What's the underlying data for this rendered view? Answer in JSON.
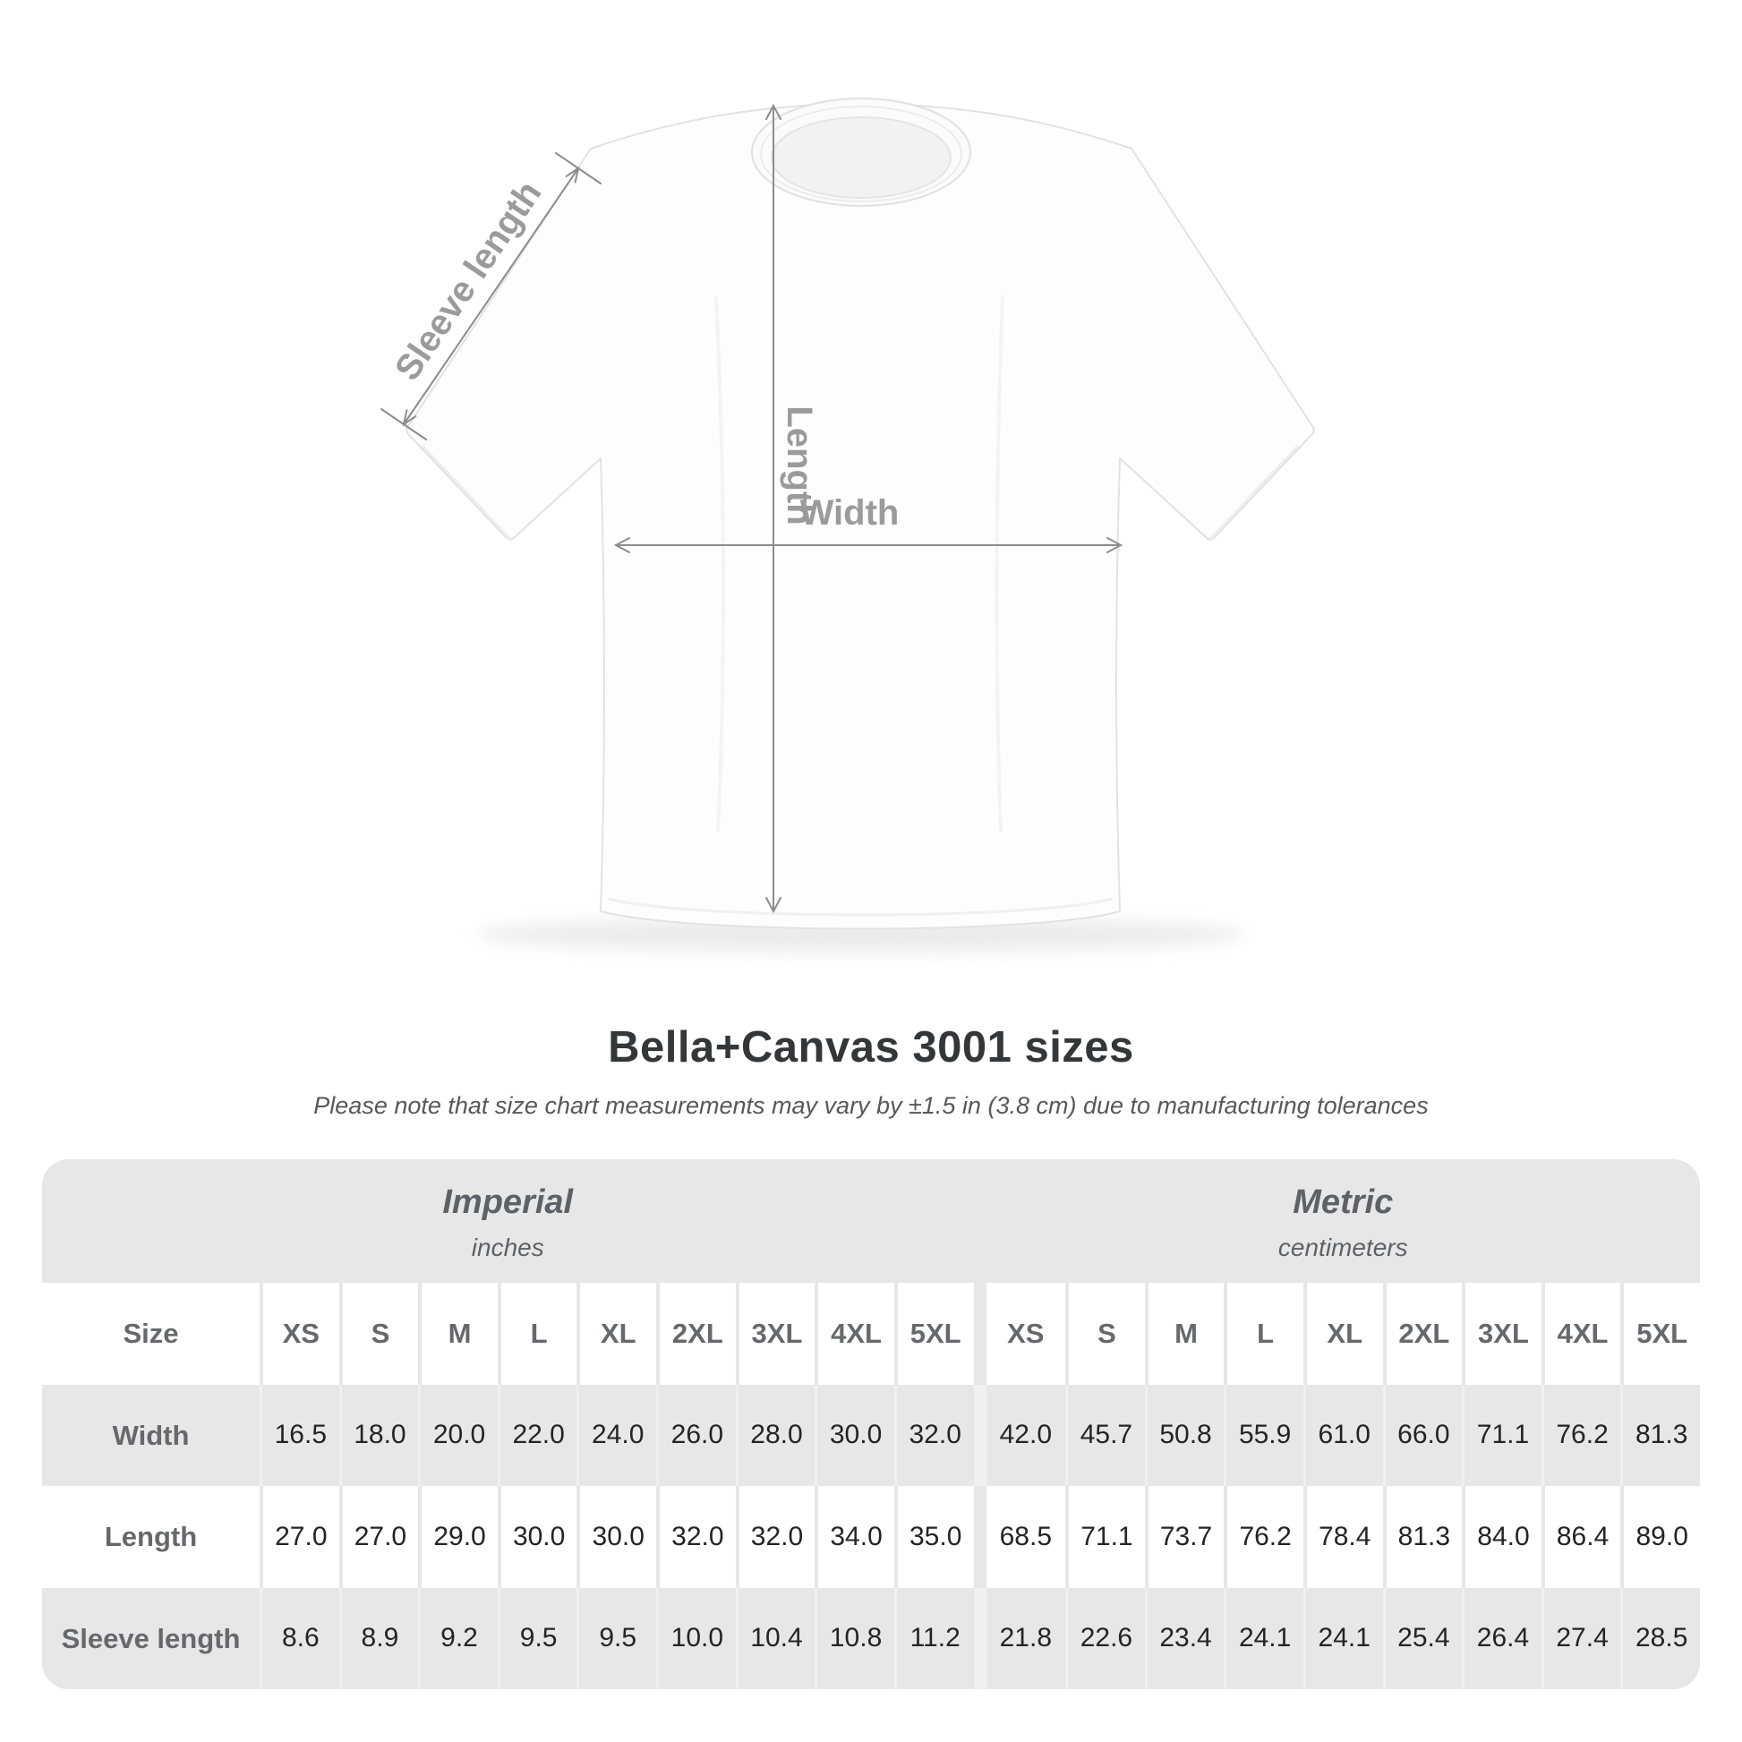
{
  "colors": {
    "table_background": "#e8e7e7",
    "row_white": "#ffffff",
    "annotation_line": "#8d8d8d",
    "annotation_label": "#9b9b9b",
    "header_text": "#65696d",
    "value_text": "#242424",
    "title_text": "#343739"
  },
  "diagram": {
    "sleeve_label": "Sleeve length",
    "length_label": "Length",
    "width_label": "Width"
  },
  "heading": {
    "title": "Bella+Canvas 3001 sizes",
    "subtitle": "Please note that size chart measurements may vary by ±1.5 in (3.8 cm) due to manufacturing tolerances"
  },
  "table": {
    "groups": [
      {
        "label": "Imperial",
        "unit": "inches"
      },
      {
        "label": "Metric",
        "unit": "centimeters"
      }
    ],
    "size_column_header": "Size",
    "sizes": [
      "XS",
      "S",
      "M",
      "L",
      "XL",
      "2XL",
      "3XL",
      "4XL",
      "5XL"
    ],
    "rows": [
      {
        "label": "Width",
        "imperial": [
          "16.5",
          "18.0",
          "20.0",
          "22.0",
          "24.0",
          "26.0",
          "28.0",
          "30.0",
          "32.0"
        ],
        "metric": [
          "42.0",
          "45.7",
          "50.8",
          "55.9",
          "61.0",
          "66.0",
          "71.1",
          "76.2",
          "81.3"
        ]
      },
      {
        "label": "Length",
        "imperial": [
          "27.0",
          "27.0",
          "29.0",
          "30.0",
          "30.0",
          "32.0",
          "32.0",
          "34.0",
          "35.0"
        ],
        "metric": [
          "68.5",
          "71.1",
          "73.7",
          "76.2",
          "78.4",
          "81.3",
          "84.0",
          "86.4",
          "89.0"
        ]
      },
      {
        "label": "Sleeve length",
        "imperial": [
          "8.6",
          "8.9",
          "9.2",
          "9.5",
          "9.5",
          "10.0",
          "10.4",
          "10.8",
          "11.2"
        ],
        "metric": [
          "21.8",
          "22.6",
          "23.4",
          "24.1",
          "24.1",
          "25.4",
          "26.4",
          "27.4",
          "28.5"
        ]
      }
    ]
  },
  "chart_data": {
    "type": "table",
    "title": "Bella+Canvas 3001 sizes",
    "note": "Please note that size chart measurements may vary by ±1.5 in (3.8 cm) due to manufacturing tolerances",
    "categories": [
      "XS",
      "S",
      "M",
      "L",
      "XL",
      "2XL",
      "3XL",
      "4XL",
      "5XL"
    ],
    "series": [
      {
        "name": "Width (inches)",
        "values": [
          16.5,
          18.0,
          20.0,
          22.0,
          24.0,
          26.0,
          28.0,
          30.0,
          32.0
        ]
      },
      {
        "name": "Length (inches)",
        "values": [
          27.0,
          27.0,
          29.0,
          30.0,
          30.0,
          32.0,
          32.0,
          34.0,
          35.0
        ]
      },
      {
        "name": "Sleeve length (inches)",
        "values": [
          8.6,
          8.9,
          9.2,
          9.5,
          9.5,
          10.0,
          10.4,
          10.8,
          11.2
        ]
      },
      {
        "name": "Width (centimeters)",
        "values": [
          42.0,
          45.7,
          50.8,
          55.9,
          61.0,
          66.0,
          71.1,
          76.2,
          81.3
        ]
      },
      {
        "name": "Length (centimeters)",
        "values": [
          68.5,
          71.1,
          73.7,
          76.2,
          78.4,
          81.3,
          84.0,
          86.4,
          89.0
        ]
      },
      {
        "name": "Sleeve length (centimeters)",
        "values": [
          21.8,
          22.6,
          23.4,
          24.1,
          24.1,
          25.4,
          26.4,
          27.4,
          28.5
        ]
      }
    ]
  }
}
